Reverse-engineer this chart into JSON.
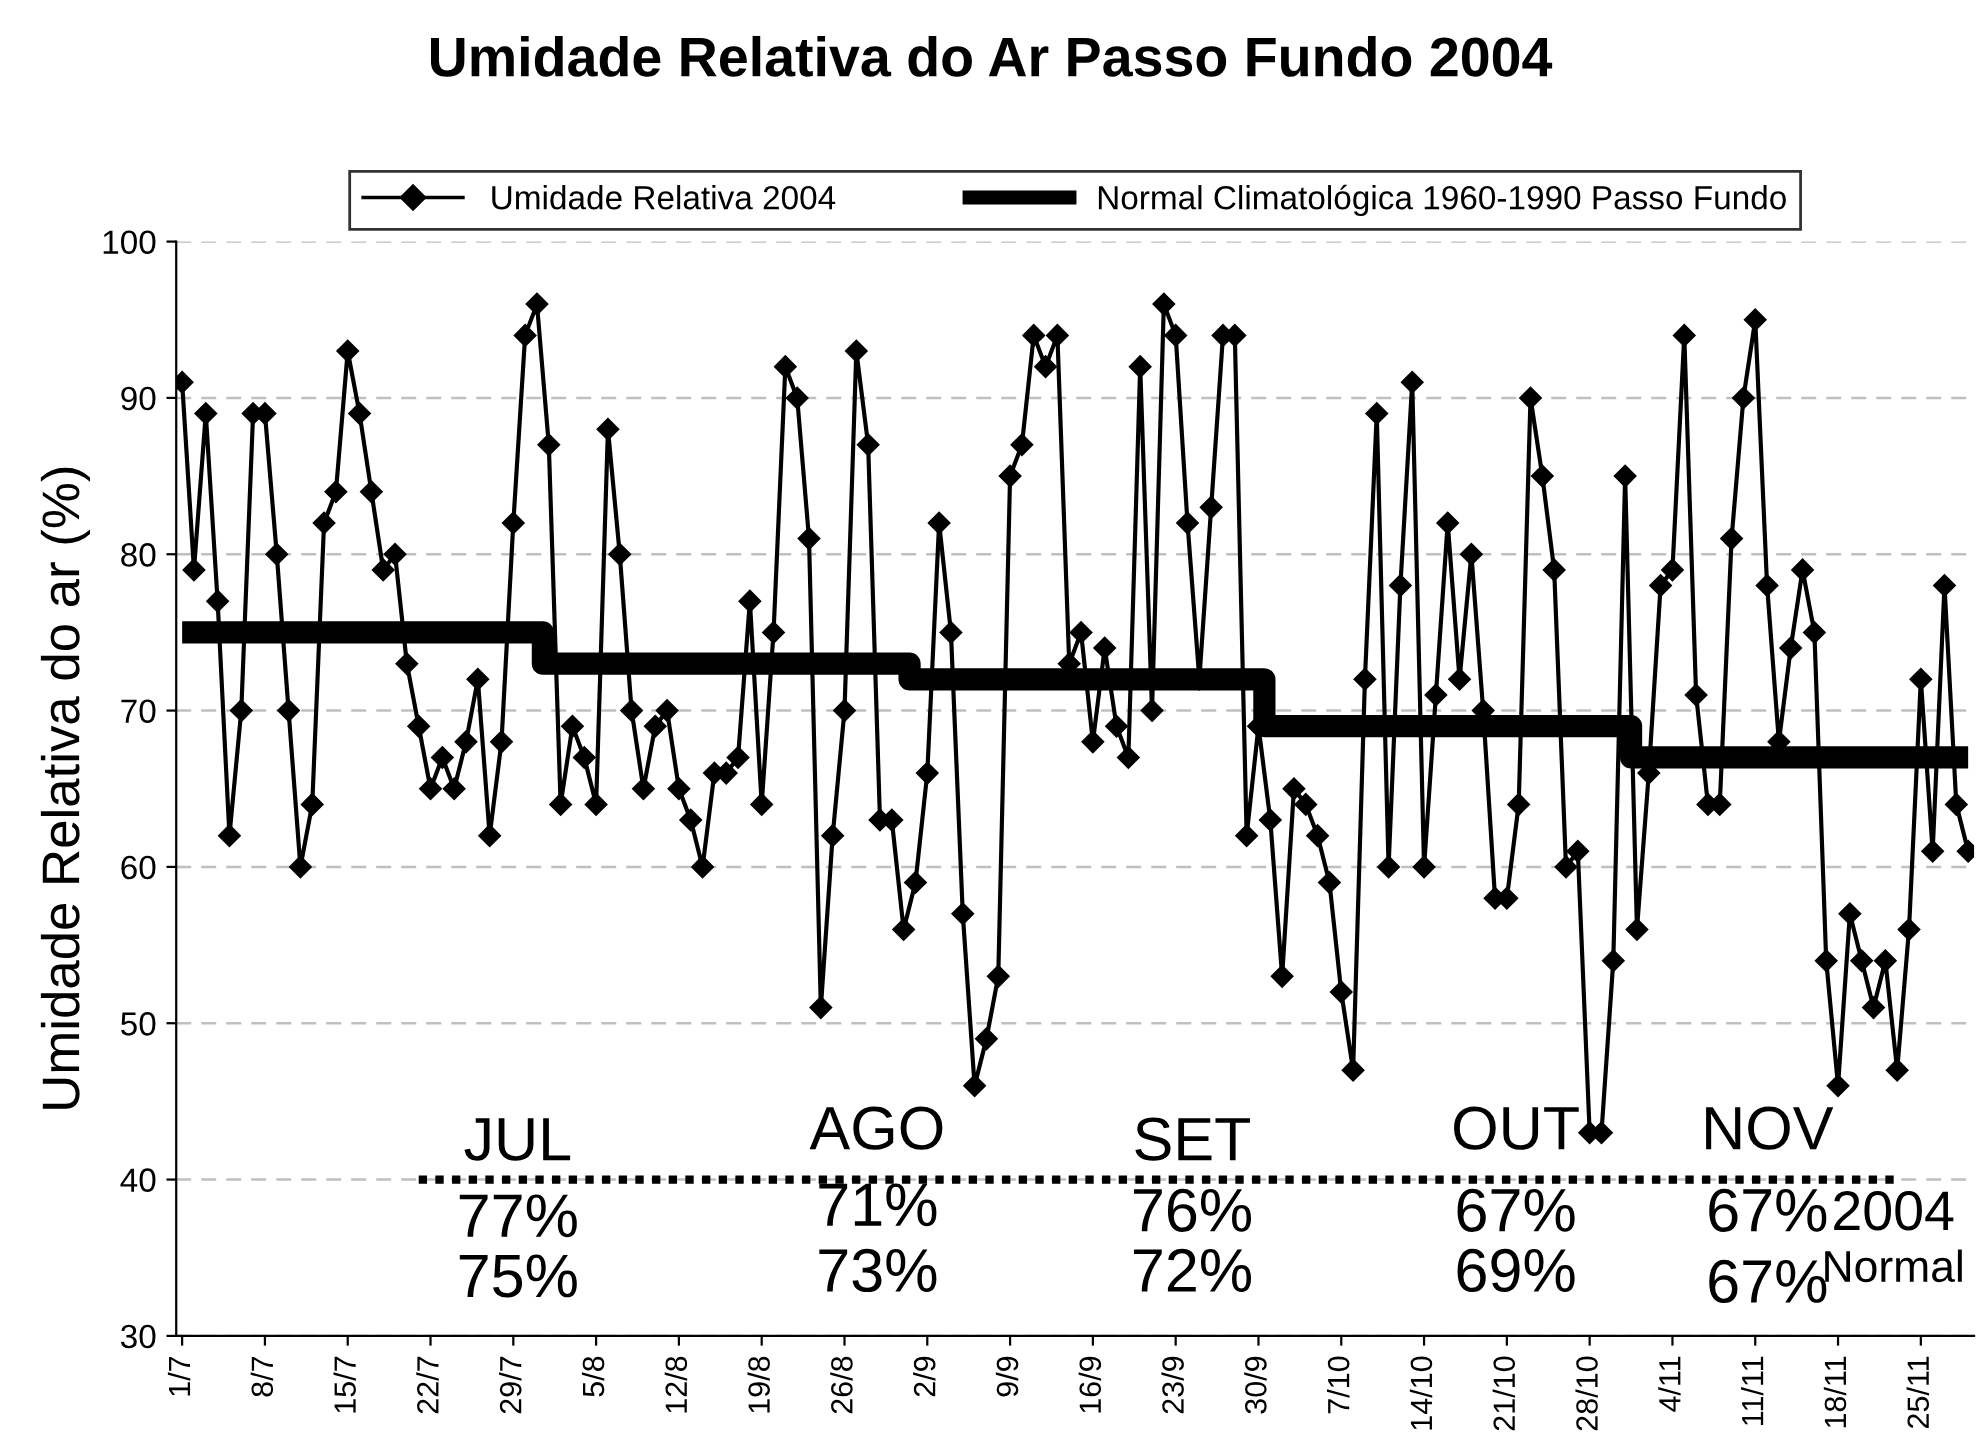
{
  "chart_data": {
    "type": "line",
    "title": "Umidade Relativa do Ar Passo Fundo 2004",
    "ylabel": "Umidade Relativa do ar (%)",
    "categories": [
      "1/7",
      null,
      null,
      null,
      null,
      null,
      null,
      "8/7",
      null,
      null,
      null,
      null,
      null,
      null,
      "15/7",
      null,
      null,
      null,
      null,
      null,
      null,
      "22/7",
      null,
      null,
      null,
      null,
      null,
      null,
      "29/7",
      null,
      null,
      null,
      null,
      null,
      null,
      "5/8",
      null,
      null,
      null,
      null,
      null,
      null,
      "12/8",
      null,
      null,
      null,
      null,
      null,
      null,
      "19/8",
      null,
      null,
      null,
      null,
      null,
      null,
      "26/8",
      null,
      null,
      null,
      null,
      null,
      null,
      "2/9",
      null,
      null,
      null,
      null,
      null,
      null,
      "9/9",
      null,
      null,
      null,
      null,
      null,
      null,
      "16/9",
      null,
      null,
      null,
      null,
      null,
      null,
      "23/9",
      null,
      null,
      null,
      null,
      null,
      null,
      "30/9",
      null,
      null,
      null,
      null,
      null,
      null,
      "7/10",
      null,
      null,
      null,
      null,
      null,
      null,
      "14/10",
      null,
      null,
      null,
      null,
      null,
      null,
      "21/10",
      null,
      null,
      null,
      null,
      null,
      null,
      "28/10",
      null,
      null,
      null,
      null,
      null,
      null,
      "4/11",
      null,
      null,
      null,
      null,
      null,
      null,
      "11/11",
      null,
      null,
      null,
      null,
      null,
      null,
      "18/11",
      null,
      null,
      null,
      null,
      null,
      null,
      "25/11",
      null,
      null,
      null,
      null
    ],
    "series": [
      {
        "name": "Umidade Relativa 2004",
        "color": "#000000",
        "marker": "diamond",
        "line_style": "solid",
        "values": [
          91,
          79,
          89,
          77,
          62,
          70,
          89,
          89,
          80,
          70,
          60,
          64,
          82,
          84,
          93,
          89,
          84,
          79,
          80,
          73,
          69,
          65,
          67,
          65,
          68,
          72,
          62,
          68,
          82,
          94,
          96,
          87,
          64,
          69,
          67,
          64,
          88,
          80,
          70,
          65,
          69,
          70,
          65,
          63,
          60,
          66,
          66,
          67,
          77,
          64,
          75,
          92,
          90,
          81,
          51,
          62,
          70,
          93,
          87,
          63,
          63,
          56,
          59,
          66,
          82,
          75,
          57,
          46,
          49,
          53,
          85,
          87,
          94,
          92,
          94,
          73,
          75,
          68,
          74,
          69,
          67,
          92,
          70,
          96,
          94,
          82,
          72,
          83,
          94,
          94,
          62,
          69,
          63,
          53,
          65,
          64,
          62,
          59,
          52,
          47,
          72,
          89,
          60,
          78,
          91,
          60,
          71,
          82,
          72,
          80,
          70,
          58,
          58,
          64,
          90,
          85,
          79,
          60,
          61,
          43,
          43,
          54,
          85,
          56,
          66,
          78,
          79,
          94,
          71,
          64,
          64,
          81,
          90,
          95,
          78,
          68,
          74,
          79,
          75,
          54,
          46,
          57,
          54,
          51,
          54,
          47,
          56,
          72,
          61,
          78,
          64,
          61
        ]
      },
      {
        "name": "Normal Climatológica 1960-1990 Passo Fundo",
        "color": "#000000",
        "type": "step",
        "marker": "none",
        "line_style": "solid",
        "values": [
          75,
          75,
          75,
          75,
          75,
          75,
          75,
          75,
          75,
          75,
          75,
          75,
          75,
          75,
          75,
          75,
          75,
          75,
          75,
          75,
          75,
          75,
          75,
          75,
          75,
          75,
          75,
          75,
          75,
          75,
          75,
          73,
          73,
          73,
          73,
          73,
          73,
          73,
          73,
          73,
          73,
          73,
          73,
          73,
          73,
          73,
          73,
          73,
          73,
          73,
          73,
          73,
          73,
          73,
          73,
          73,
          73,
          73,
          73,
          73,
          73,
          73,
          72,
          72,
          72,
          72,
          72,
          72,
          72,
          72,
          72,
          72,
          72,
          72,
          72,
          72,
          72,
          72,
          72,
          72,
          72,
          72,
          72,
          72,
          72,
          72,
          72,
          72,
          72,
          72,
          72,
          72,
          69,
          69,
          69,
          69,
          69,
          69,
          69,
          69,
          69,
          69,
          69,
          69,
          69,
          69,
          69,
          69,
          69,
          69,
          69,
          69,
          69,
          69,
          69,
          69,
          69,
          69,
          69,
          69,
          69,
          69,
          69,
          67,
          67,
          67,
          67,
          67,
          67,
          67,
          67,
          67,
          67,
          67,
          67,
          67,
          67,
          67,
          67,
          67,
          67,
          67,
          67,
          67,
          67,
          67,
          67,
          67,
          67,
          67,
          67,
          67
        ]
      },
      {
        "color": "#000000",
        "marker": "none",
        "line_style": "dotted",
        "values": [
          null,
          null,
          null,
          null,
          null,
          null,
          null,
          null,
          null,
          null,
          null,
          null,
          null,
          null,
          null,
          null,
          null,
          null,
          null,
          null,
          40,
          40,
          40,
          40,
          40,
          40,
          40,
          40,
          40,
          40,
          40,
          40,
          40,
          40,
          40,
          40,
          40,
          40,
          40,
          40,
          40,
          40,
          40,
          40,
          40,
          40,
          40,
          40,
          40,
          40,
          40,
          40,
          40,
          40,
          40,
          40,
          40,
          40,
          40,
          40,
          40,
          40,
          40,
          40,
          40,
          40,
          40,
          40,
          40,
          40,
          40,
          40,
          40,
          40,
          40,
          40,
          40,
          40,
          40,
          40,
          40,
          40,
          40,
          40,
          40,
          40,
          40,
          40,
          40,
          40,
          40,
          40,
          40,
          40,
          40,
          40,
          40,
          40,
          40,
          40,
          40,
          40,
          40,
          40,
          40,
          40,
          40,
          40,
          40,
          40,
          40,
          40,
          40,
          40,
          40,
          40,
          40,
          40,
          40,
          40,
          40,
          40,
          40,
          40,
          40,
          40,
          40,
          40,
          40,
          40,
          40,
          40,
          40,
          40,
          40,
          40,
          40,
          40,
          40,
          40,
          40,
          40,
          40,
          40,
          40,
          40,
          null,
          null,
          null,
          null,
          null,
          null
        ]
      }
    ],
    "annotations": [
      "JUL",
      "77%",
      "75%",
      "AGO",
      "71%",
      "73%",
      "SET",
      "76%",
      "72%",
      "OUT",
      "67%",
      "69%",
      "NOV",
      "67%",
      "67%",
      "2004",
      "Normal"
    ],
    "ylim": [
      30,
      100
    ],
    "yticks": [
      30,
      40,
      50,
      60,
      70,
      80,
      90,
      100
    ],
    "grid": "y",
    "legend": "top"
  }
}
